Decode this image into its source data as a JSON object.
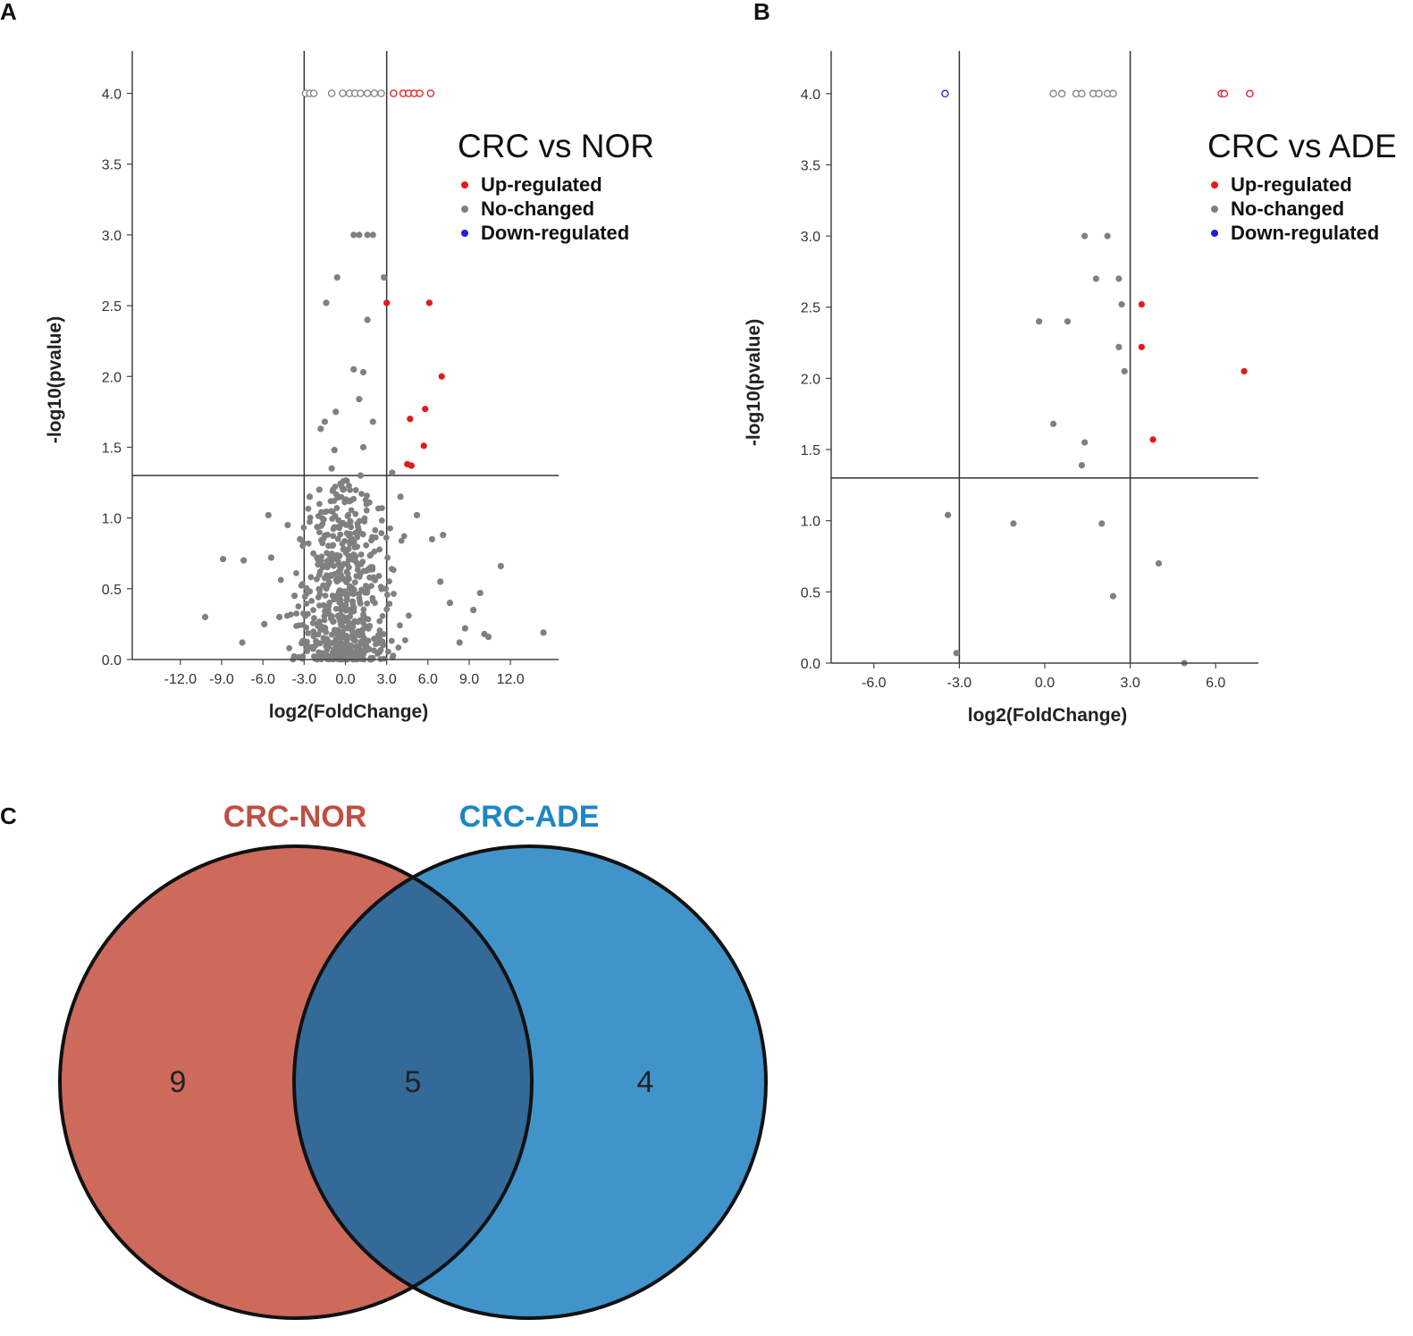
{
  "panels": {
    "a": {
      "letter": "A"
    },
    "b": {
      "letter": "B"
    },
    "c": {
      "letter": "C"
    }
  },
  "chart_data": [
    {
      "id": "A",
      "type": "scatter",
      "title": "CRC vs NOR",
      "xlabel": "log2(FoldChange)",
      "ylabel": "-log10(pvalue)",
      "xlim": [
        -15.5,
        15.5
      ],
      "ylim": [
        0,
        4.3
      ],
      "x_ticks": [
        -12,
        -9,
        -6,
        -3,
        0,
        3,
        6,
        9,
        12
      ],
      "x_tick_labels": [
        "-12.0",
        "-9.0",
        "-6.0",
        "-3.0",
        "0.0",
        "3.0",
        "6.0",
        "9.0",
        "12.0"
      ],
      "y_ticks": [
        0,
        0.5,
        1,
        1.5,
        2,
        2.5,
        3,
        3.5,
        4
      ],
      "y_tick_labels": [
        "0.0",
        "0.5",
        "1.0",
        "1.5",
        "2.0",
        "2.5",
        "3.0",
        "3.5",
        "4.0"
      ],
      "thresholds": {
        "fold_change": [
          -3,
          3
        ],
        "neg_log10_p": 1.3
      },
      "legend": {
        "placement": "top-right",
        "entries": [
          {
            "label": "Up-regulated",
            "color": "#e4191c"
          },
          {
            "label": "No-changed",
            "color": "#808080"
          },
          {
            "label": "Down-regulated",
            "color": "#1f1fd6"
          }
        ]
      },
      "series": [
        {
          "name": "Up-regulated",
          "color": "#e4191c",
          "points": [
            [
              3.0,
              2.52
            ],
            [
              6.1,
              2.52
            ],
            [
              7.0,
              2.0
            ],
            [
              5.8,
              1.77
            ],
            [
              4.7,
              1.7
            ],
            [
              5.7,
              1.51
            ],
            [
              4.5,
              1.38
            ],
            [
              4.8,
              1.37
            ]
          ],
          "open_points": [
            [
              3.5,
              4.0
            ],
            [
              4.2,
              4.0
            ],
            [
              4.6,
              4.0
            ],
            [
              5.0,
              4.0
            ],
            [
              5.4,
              4.0
            ],
            [
              6.2,
              4.0
            ]
          ]
        },
        {
          "name": "No-changed",
          "color": "#808080",
          "points": [
            [
              0.6,
              3.0
            ],
            [
              1.0,
              3.0
            ],
            [
              1.6,
              3.0
            ],
            [
              2.0,
              3.0
            ],
            [
              -0.6,
              2.7
            ],
            [
              2.8,
              2.7
            ],
            [
              -1.4,
              2.52
            ],
            [
              1.6,
              2.4
            ],
            [
              0.6,
              2.05
            ],
            [
              1.3,
              2.03
            ],
            [
              1.0,
              1.84
            ],
            [
              -1.5,
              1.68
            ],
            [
              -0.7,
              1.75
            ],
            [
              -1.8,
              1.63
            ],
            [
              1.3,
              1.5
            ],
            [
              -0.8,
              1.48
            ],
            [
              2.0,
              1.68
            ],
            [
              1.1,
              1.3
            ],
            [
              -1.0,
              1.35
            ],
            [
              3.4,
              1.32
            ],
            [
              -8.9,
              0.71
            ],
            [
              -7.4,
              0.7
            ],
            [
              -5.4,
              0.72
            ],
            [
              -10.2,
              0.3
            ],
            [
              -7.5,
              0.12
            ],
            [
              -5.9,
              0.25
            ],
            [
              -4.8,
              0.3
            ],
            [
              -3.7,
              0.45
            ],
            [
              11.3,
              0.66
            ],
            [
              9.8,
              0.47
            ],
            [
              9.3,
              0.35
            ],
            [
              8.7,
              0.22
            ],
            [
              8.3,
              0.12
            ],
            [
              10.1,
              0.18
            ],
            [
              10.4,
              0.16
            ],
            [
              14.4,
              0.19
            ],
            [
              6.9,
              0.55
            ],
            [
              7.6,
              0.4
            ],
            [
              -4.2,
              0.95
            ],
            [
              -5.6,
              1.02
            ],
            [
              -3.3,
              0.85
            ],
            [
              -2.6,
              1.15
            ],
            [
              -1.9,
              1.2
            ],
            [
              4.0,
              1.15
            ],
            [
              5.2,
              1.02
            ],
            [
              6.3,
              0.85
            ],
            [
              7.1,
              0.88
            ]
          ],
          "open_points": [
            [
              -2.9,
              4.0
            ],
            [
              -2.6,
              4.0
            ],
            [
              -2.3,
              4.0
            ],
            [
              -1.0,
              4.0
            ],
            [
              -0.2,
              4.0
            ],
            [
              0.3,
              4.0
            ],
            [
              0.7,
              4.0
            ],
            [
              1.1,
              4.0
            ],
            [
              1.6,
              4.0
            ],
            [
              2.1,
              4.0
            ],
            [
              2.6,
              4.0
            ]
          ],
          "cloud": {
            "count": 620,
            "x_center": 0,
            "x_spread": 2.6,
            "y_max": 1.28,
            "seed": 7
          }
        },
        {
          "name": "Down-regulated",
          "color": "#1f1fd6",
          "points": [],
          "open_points": []
        }
      ]
    },
    {
      "id": "B",
      "type": "scatter",
      "title": "CRC vs ADE",
      "xlabel": "log2(FoldChange)",
      "ylabel": "-log10(pvalue)",
      "xlim": [
        -7.5,
        7.5
      ],
      "ylim": [
        0,
        4.3
      ],
      "x_ticks": [
        -6,
        -3,
        0,
        3,
        6
      ],
      "x_tick_labels": [
        "-6.0",
        "-3.0",
        "0.0",
        "3.0",
        "6.0"
      ],
      "y_ticks": [
        0,
        0.5,
        1,
        1.5,
        2,
        2.5,
        3,
        3.5,
        4
      ],
      "y_tick_labels": [
        "0.0",
        "0.5",
        "1.0",
        "1.5",
        "2.0",
        "2.5",
        "3.0",
        "3.5",
        "4.0"
      ],
      "thresholds": {
        "fold_change": [
          -3,
          3
        ],
        "neg_log10_p": 1.3
      },
      "legend": {
        "placement": "top-right",
        "entries": [
          {
            "label": "Up-regulated",
            "color": "#e4191c"
          },
          {
            "label": "No-changed",
            "color": "#808080"
          },
          {
            "label": "Down-regulated",
            "color": "#1f1fd6"
          }
        ]
      },
      "series": [
        {
          "name": "Up-regulated",
          "color": "#e4191c",
          "points": [
            [
              3.4,
              2.52
            ],
            [
              3.4,
              2.22
            ],
            [
              7.0,
              2.05
            ],
            [
              3.8,
              1.57
            ]
          ],
          "open_points": [
            [
              6.2,
              4.0
            ],
            [
              6.3,
              4.0
            ],
            [
              7.2,
              4.0
            ]
          ]
        },
        {
          "name": "No-changed",
          "color": "#808080",
          "points": [
            [
              1.4,
              3.0
            ],
            [
              2.2,
              3.0
            ],
            [
              1.8,
              2.7
            ],
            [
              2.6,
              2.7
            ],
            [
              2.7,
              2.52
            ],
            [
              -0.2,
              2.4
            ],
            [
              0.8,
              2.4
            ],
            [
              2.6,
              2.22
            ],
            [
              2.8,
              2.05
            ],
            [
              0.3,
              1.68
            ],
            [
              1.4,
              1.55
            ],
            [
              1.3,
              1.39
            ],
            [
              -3.4,
              1.04
            ],
            [
              -1.1,
              0.98
            ],
            [
              2.0,
              0.98
            ],
            [
              4.0,
              0.7
            ],
            [
              2.4,
              0.47
            ],
            [
              -3.1,
              0.07
            ],
            [
              4.9,
              0.0
            ]
          ],
          "open_points": [
            [
              0.3,
              4.0
            ],
            [
              0.6,
              4.0
            ],
            [
              1.1,
              4.0
            ],
            [
              1.3,
              4.0
            ],
            [
              1.7,
              4.0
            ],
            [
              1.9,
              4.0
            ],
            [
              2.2,
              4.0
            ],
            [
              2.4,
              4.0
            ]
          ]
        },
        {
          "name": "Down-regulated",
          "color": "#1f1fd6",
          "points": [],
          "open_points": [
            [
              -3.5,
              4.0
            ]
          ]
        }
      ]
    },
    {
      "id": "C",
      "type": "venn",
      "sets": [
        {
          "name": "CRC-NOR",
          "color": "#cd6a5c",
          "label_color": "#bf4f40",
          "only": 9
        },
        {
          "name": "CRC-ADE",
          "color": "#4194c9",
          "label_color": "#1e86c4",
          "only": 4
        }
      ],
      "intersection": {
        "count": 5,
        "color": "#336a98"
      }
    }
  ]
}
